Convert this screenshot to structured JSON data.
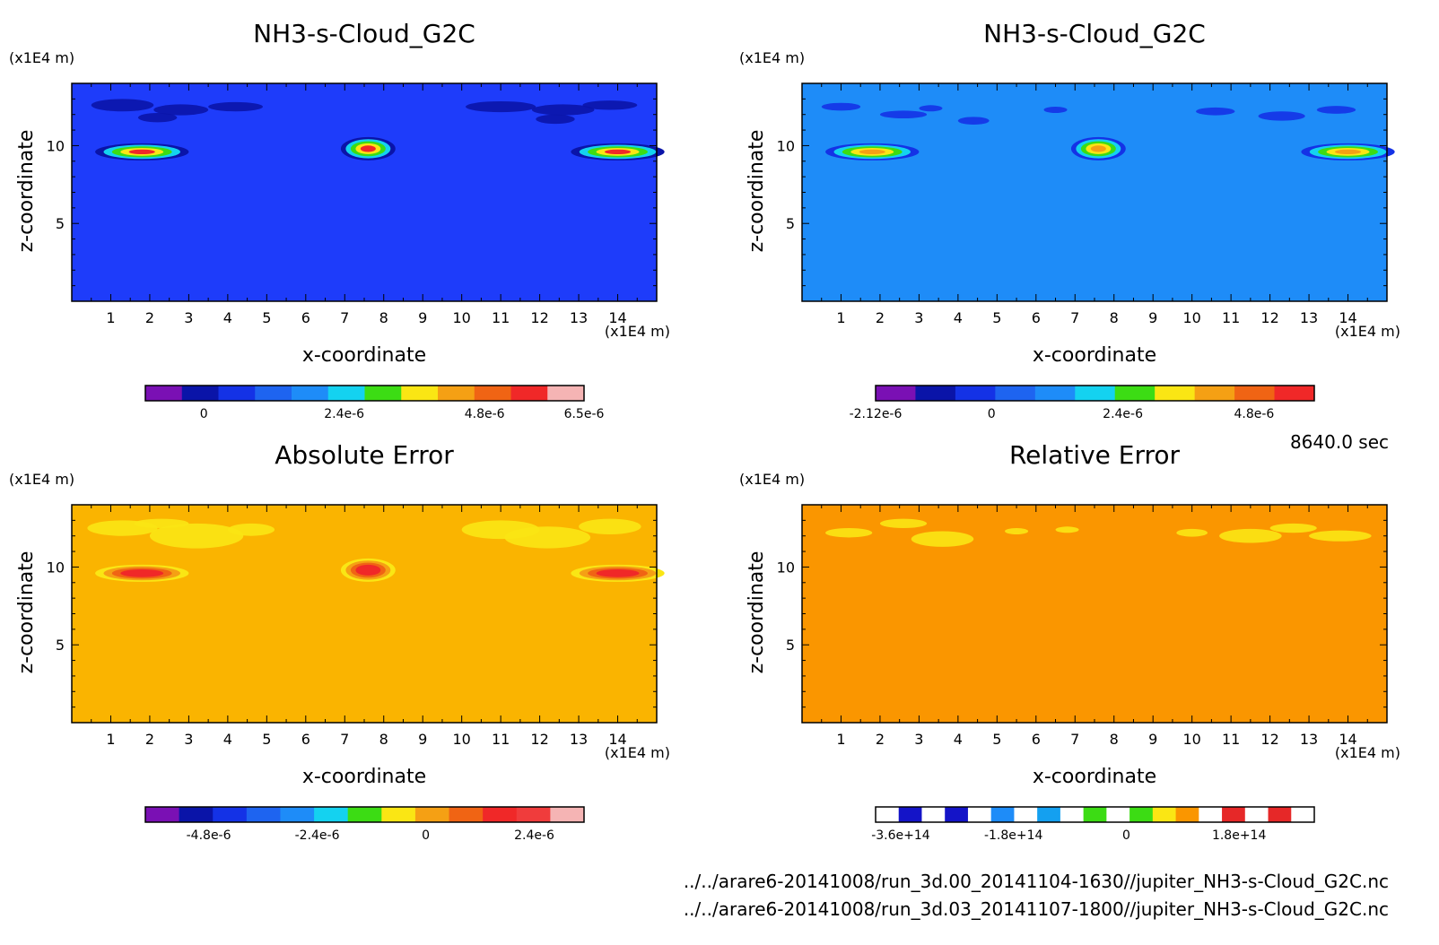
{
  "footer": {
    "time": "8640.0 sec",
    "file1": "../../arare6-20141008/run_3d.00_20141104-1630//jupiter_NH3-s-Cloud_G2C.nc",
    "file2": "../../arare6-20141008/run_3d.03_20141107-1800//jupiter_NH3-s-Cloud_G2C.nc"
  },
  "chart_data": [
    {
      "type": "heatmap",
      "title": "NH3-s-Cloud_G2C",
      "xlabel": "x-coordinate",
      "ylabel": "z-coordinate",
      "x_unit": "(x1E4 m)",
      "y_unit": "(x1E4 m)",
      "xlim": [
        0,
        15
      ],
      "ylim": [
        0,
        14
      ],
      "xticks": [
        "1",
        "2",
        "3",
        "4",
        "5",
        "6",
        "7",
        "8",
        "9",
        "10",
        "11",
        "12",
        "13",
        "14"
      ],
      "yticks": [
        "5",
        "10"
      ],
      "background": "#1e3cfa",
      "colorbar": {
        "colors": [
          "#7a10b4",
          "#0a14a8",
          "#1432e6",
          "#1e64f0",
          "#1e8cf8",
          "#14d2f0",
          "#3cdc14",
          "#fae614",
          "#f5a014",
          "#f06414",
          "#f02828",
          "#f5b4b4"
        ],
        "ticks": [
          "0",
          "2.4e-6",
          "4.8e-6",
          "6.5e-6"
        ],
        "tick_values": [
          0,
          2.4e-06,
          4.8e-06,
          6.5e-06
        ],
        "range": [
          -1e-06,
          6.5e-06
        ]
      },
      "features": [
        {
          "x": 1.8,
          "z": 9.6,
          "peak": "red"
        },
        {
          "x": 7.6,
          "z": 9.8,
          "peak": "red"
        },
        {
          "x": 14.0,
          "z": 9.6,
          "peak": "red"
        }
      ]
    },
    {
      "type": "heatmap",
      "title": "NH3-s-Cloud_G2C",
      "xlabel": "x-coordinate",
      "ylabel": "z-coordinate",
      "x_unit": "(x1E4 m)",
      "y_unit": "(x1E4 m)",
      "xlim": [
        0,
        15
      ],
      "ylim": [
        0,
        14
      ],
      "xticks": [
        "1",
        "2",
        "3",
        "4",
        "5",
        "6",
        "7",
        "8",
        "9",
        "10",
        "11",
        "12",
        "13",
        "14"
      ],
      "yticks": [
        "5",
        "10"
      ],
      "background": "#1e8cf8",
      "colorbar": {
        "colors": [
          "#7a10b4",
          "#0a14a8",
          "#1432e6",
          "#1e64f0",
          "#1e8cf8",
          "#14d2f0",
          "#3cdc14",
          "#fae614",
          "#f5a014",
          "#f06414",
          "#f02828"
        ],
        "ticks": [
          "-2.12e-6",
          "0",
          "2.4e-6",
          "4.8e-6"
        ],
        "tick_values": [
          -2.12e-06,
          0,
          2.4e-06,
          4.8e-06
        ],
        "range": [
          -2.12e-06,
          5.9e-06
        ]
      },
      "features": [
        {
          "x": 1.8,
          "z": 9.6,
          "peak": "orange"
        },
        {
          "x": 7.6,
          "z": 9.8,
          "peak": "yellow"
        },
        {
          "x": 14.0,
          "z": 9.6,
          "peak": "orange"
        }
      ]
    },
    {
      "type": "heatmap",
      "title": "Absolute Error",
      "xlabel": "x-coordinate",
      "ylabel": "z-coordinate",
      "x_unit": "(x1E4 m)",
      "y_unit": "(x1E4 m)",
      "xlim": [
        0,
        15
      ],
      "ylim": [
        0,
        14
      ],
      "xticks": [
        "1",
        "2",
        "3",
        "4",
        "5",
        "6",
        "7",
        "8",
        "9",
        "10",
        "11",
        "12",
        "13",
        "14"
      ],
      "yticks": [
        "5",
        "10"
      ],
      "background": "#fab400",
      "colorbar": {
        "colors": [
          "#7a10b4",
          "#0a14a8",
          "#1432e6",
          "#1e64f0",
          "#1e8cf8",
          "#14d2f0",
          "#3cdc14",
          "#fae614",
          "#f5a014",
          "#f06414",
          "#f02828",
          "#f03c3c",
          "#f5b4b4"
        ],
        "ticks": [
          "-4.8e-6",
          "-2.4e-6",
          "0",
          "2.4e-6"
        ],
        "tick_values": [
          -4.8e-06,
          -2.4e-06,
          0,
          2.4e-06
        ],
        "range": [
          -6.2e-06,
          3.5e-06
        ]
      },
      "features": [
        {
          "x": 1.8,
          "z": 9.6,
          "peak": "red"
        },
        {
          "x": 7.6,
          "z": 9.8,
          "peak": "red"
        },
        {
          "x": 14.0,
          "z": 9.6,
          "peak": "red"
        }
      ]
    },
    {
      "type": "heatmap",
      "title": "Relative Error",
      "xlabel": "x-coordinate",
      "ylabel": "z-coordinate",
      "x_unit": "(x1E4 m)",
      "y_unit": "(x1E4 m)",
      "xlim": [
        0,
        15
      ],
      "ylim": [
        0,
        14
      ],
      "xticks": [
        "1",
        "2",
        "3",
        "4",
        "5",
        "6",
        "7",
        "8",
        "9",
        "10",
        "11",
        "12",
        "13",
        "14"
      ],
      "yticks": [
        "5",
        "10"
      ],
      "background": "#fa9600",
      "colorbar": {
        "colors": [
          "#ffffff",
          "#1414c8",
          "#ffffff",
          "#1414c8",
          "#ffffff",
          "#1e8cf8",
          "#ffffff",
          "#14a0f0",
          "#ffffff",
          "#3cdc14",
          "#ffffff",
          "#3cdc14",
          "#fae614",
          "#fa9600",
          "#ffffff",
          "#e62828",
          "#ffffff",
          "#e62828",
          "#ffffff"
        ],
        "ticks": [
          "-3.6e+14",
          "-1.8e+14",
          "0",
          "1.8e+14"
        ],
        "tick_values": [
          -360000000000000.0,
          -180000000000000.0,
          0,
          180000000000000.0
        ],
        "range": [
          -400000000000000.0,
          300000000000000.0
        ]
      },
      "features": []
    }
  ]
}
